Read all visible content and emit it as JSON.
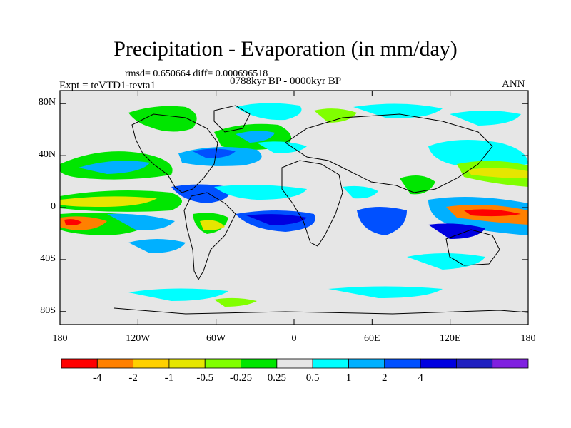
{
  "title": "Precipitation - Evaporation (in mm/day)",
  "stats": "rmsd= 0.650664  diff= 0.000696518",
  "experiment": "Expt = teVTD1-tevta1",
  "period": "0788kyr BP - 0000kyr BP",
  "season": "ANN",
  "lat_ticks": [
    {
      "value": 80,
      "label": "80N"
    },
    {
      "value": 40,
      "label": "40N"
    },
    {
      "value": 0,
      "label": "0"
    },
    {
      "value": -40,
      "label": "40S"
    },
    {
      "value": -80,
      "label": "80S"
    }
  ],
  "lon_ticks": [
    {
      "value": -180,
      "label": "180"
    },
    {
      "value": -120,
      "label": "120W"
    },
    {
      "value": -60,
      "label": "60W"
    },
    {
      "value": 0,
      "label": "0"
    },
    {
      "value": 60,
      "label": "60E"
    },
    {
      "value": 120,
      "label": "120E"
    },
    {
      "value": 180,
      "label": "180"
    }
  ],
  "colorbar": {
    "colors": [
      "#ff0000",
      "#ff8000",
      "#ffd000",
      "#e6e600",
      "#80ff00",
      "#00e600",
      "#e6e6e6",
      "#00ffff",
      "#00b0ff",
      "#0050ff",
      "#0000e0",
      "#2020c0",
      "#8020e0"
    ],
    "labels": [
      "-4",
      "-2",
      "-1",
      "-0.5",
      "-0.25",
      "0.25",
      "0.5",
      "1",
      "2",
      "4"
    ]
  },
  "colors": {
    "background": "#e6e6e6",
    "frame": "#000000"
  }
}
